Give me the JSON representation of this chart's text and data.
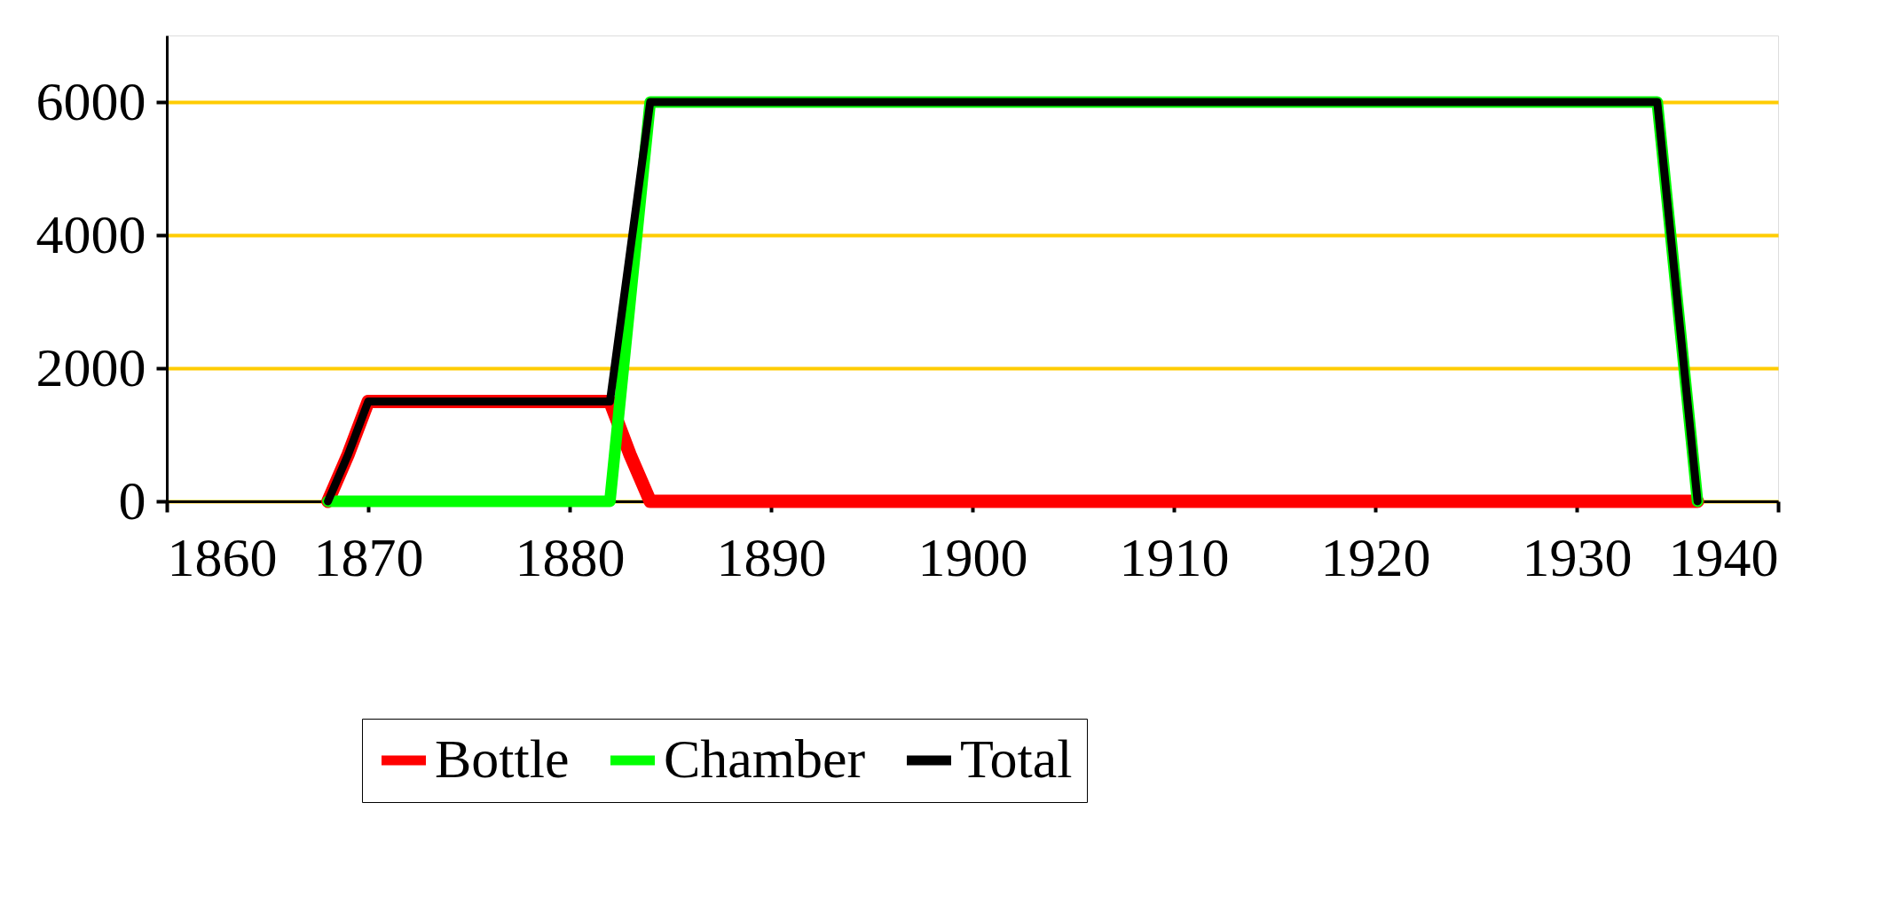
{
  "chart_data": {
    "type": "line",
    "x": [
      1868,
      1869,
      1870,
      1882,
      1883,
      1884,
      1934,
      1936
    ],
    "series": [
      {
        "name": "Bottle",
        "color": "#ff0000",
        "values": [
          0,
          700,
          1500,
          1500,
          700,
          0,
          0,
          0
        ]
      },
      {
        "name": "Chamber",
        "color": "#00ff00",
        "values": [
          0,
          0,
          0,
          0,
          3000,
          6000,
          6000,
          0
        ]
      },
      {
        "name": "Total",
        "color": "#000000",
        "values": [
          0,
          700,
          1500,
          1500,
          3750,
          6000,
          6000,
          0
        ]
      }
    ],
    "xlim": [
      1860,
      1940
    ],
    "xticks": [
      1860,
      1870,
      1880,
      1890,
      1900,
      1910,
      1920,
      1930,
      1940
    ],
    "ylim": [
      0,
      7000
    ],
    "yticks": [
      0,
      2000,
      4000,
      6000
    ],
    "grid": "y",
    "legend": "bottom",
    "marker": "none",
    "line_style": "solid"
  }
}
